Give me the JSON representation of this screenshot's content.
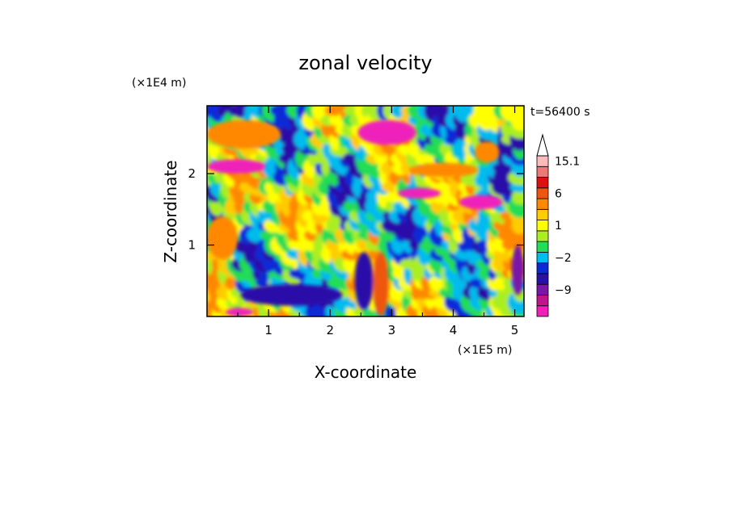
{
  "chart_data": {
    "type": "heatmap",
    "title": "zonal velocity",
    "xlabel": "X-coordinate",
    "ylabel": "Z-coordinate",
    "x_unit": "(×1E5 m)",
    "y_unit": "(×1E4 m)",
    "time_label": "t=56400 s",
    "xlim": [
      0,
      5.15
    ],
    "ylim": [
      0,
      2.95
    ],
    "x_ticks": [
      1,
      2,
      3,
      4,
      5
    ],
    "y_ticks": [
      1,
      2
    ],
    "colorbar": {
      "levels": [
        -15,
        -12,
        -9,
        -6,
        -3,
        -2,
        -1,
        0,
        1,
        2,
        3,
        6,
        9,
        12,
        15.1
      ],
      "colors": [
        "#ee22bb",
        "#c0168c",
        "#7a16a8",
        "#2a10a8",
        "#0a2ad8",
        "#00bbee",
        "#22dd55",
        "#aaee22",
        "#ffff00",
        "#ffcc00",
        "#ff8800",
        "#ee5511",
        "#dd1111",
        "#ee7777",
        "#ffbbbb"
      ],
      "labels": [
        {
          "value": 15.1,
          "text": "15.1"
        },
        {
          "value": 6,
          "text": "6"
        },
        {
          "value": 1,
          "text": "1"
        },
        {
          "value": -2,
          "text": "−2"
        },
        {
          "value": -9,
          "text": "−9"
        }
      ],
      "extend": "max"
    },
    "bands": [
      {
        "x0": 0.0,
        "x1": 1.2,
        "z0": 2.35,
        "z1": 2.75,
        "value": 5
      },
      {
        "x0": 2.45,
        "x1": 3.4,
        "z0": 2.4,
        "z1": 2.75,
        "value": -12
      },
      {
        "x0": 0.0,
        "x1": 0.95,
        "z0": 2.0,
        "z1": 2.2,
        "value": -12
      },
      {
        "x0": 3.3,
        "x1": 4.4,
        "z0": 1.95,
        "z1": 2.15,
        "value": 5
      },
      {
        "x0": 3.1,
        "x1": 3.8,
        "z0": 1.65,
        "z1": 1.8,
        "value": -12
      },
      {
        "x0": 4.1,
        "x1": 4.8,
        "z0": 1.5,
        "z1": 1.7,
        "value": -12
      },
      {
        "x0": 4.35,
        "x1": 4.75,
        "z0": 2.15,
        "z1": 2.45,
        "value": 4
      },
      {
        "x0": 0.0,
        "x1": 0.5,
        "z0": 0.8,
        "z1": 1.4,
        "value": 5
      },
      {
        "x0": 0.55,
        "x1": 2.2,
        "z0": 0.15,
        "z1": 0.45,
        "value": -3
      },
      {
        "x0": 2.7,
        "x1": 2.95,
        "z0": 0.0,
        "z1": 0.9,
        "value": 7
      },
      {
        "x0": 2.4,
        "x1": 2.7,
        "z0": 0.1,
        "z1": 0.9,
        "value": -3
      },
      {
        "x0": 0.3,
        "x1": 0.75,
        "z0": 0.0,
        "z1": 0.12,
        "value": -12
      },
      {
        "x0": 4.95,
        "x1": 5.15,
        "z0": 0.3,
        "z1": 1.0,
        "value": -6
      }
    ]
  }
}
